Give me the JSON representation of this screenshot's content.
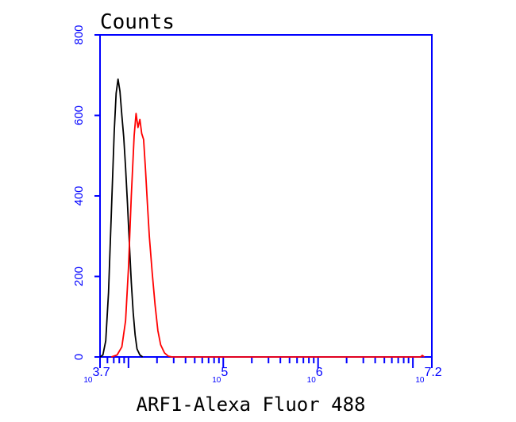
{
  "chart_data": {
    "type": "line",
    "title": "",
    "ylabel": "Counts",
    "xlabel": "ARF1-Alexa Fluor 488",
    "xscale": "log",
    "xlim_log10": [
      3.7,
      7.2
    ],
    "ylim": [
      0,
      800
    ],
    "yticks": [
      0,
      200,
      400,
      600,
      800
    ],
    "ytick_labels": [
      "0",
      "200",
      "400",
      "600",
      "800"
    ],
    "xtick_labels": [
      {
        "log10": 3.7,
        "base": "10",
        "exp": "3.7"
      },
      {
        "log10": 5,
        "base": "10",
        "exp": "5"
      },
      {
        "log10": 6,
        "base": "10",
        "exp": "6"
      },
      {
        "log10": 7.2,
        "base": "10",
        "exp": "7.2"
      }
    ],
    "grid": false,
    "legend": "none",
    "axis_color": "#0000ff",
    "series": [
      {
        "color": "#000000",
        "points": [
          [
            3.7,
            0
          ],
          [
            3.73,
            5
          ],
          [
            3.76,
            40
          ],
          [
            3.79,
            160
          ],
          [
            3.82,
            360
          ],
          [
            3.85,
            560
          ],
          [
            3.87,
            655
          ],
          [
            3.89,
            690
          ],
          [
            3.91,
            660
          ],
          [
            3.93,
            600
          ],
          [
            3.95,
            545
          ],
          [
            3.97,
            470
          ],
          [
            3.99,
            380
          ],
          [
            4.01,
            280
          ],
          [
            4.03,
            185
          ],
          [
            4.05,
            110
          ],
          [
            4.07,
            55
          ],
          [
            4.09,
            20
          ],
          [
            4.12,
            5
          ],
          [
            4.15,
            0
          ]
        ]
      },
      {
        "color": "#ff0000",
        "points": [
          [
            3.82,
            0
          ],
          [
            3.88,
            5
          ],
          [
            3.93,
            25
          ],
          [
            3.97,
            90
          ],
          [
            4.0,
            220
          ],
          [
            4.03,
            400
          ],
          [
            4.06,
            550
          ],
          [
            4.08,
            605
          ],
          [
            4.1,
            570
          ],
          [
            4.12,
            590
          ],
          [
            4.14,
            555
          ],
          [
            4.16,
            540
          ],
          [
            4.18,
            465
          ],
          [
            4.2,
            380
          ],
          [
            4.22,
            300
          ],
          [
            4.25,
            210
          ],
          [
            4.28,
            130
          ],
          [
            4.31,
            65
          ],
          [
            4.34,
            30
          ],
          [
            4.38,
            10
          ],
          [
            4.42,
            2
          ],
          [
            4.46,
            0
          ],
          [
            7.08,
            0
          ],
          [
            7.1,
            4
          ],
          [
            7.12,
            0
          ]
        ]
      }
    ]
  }
}
